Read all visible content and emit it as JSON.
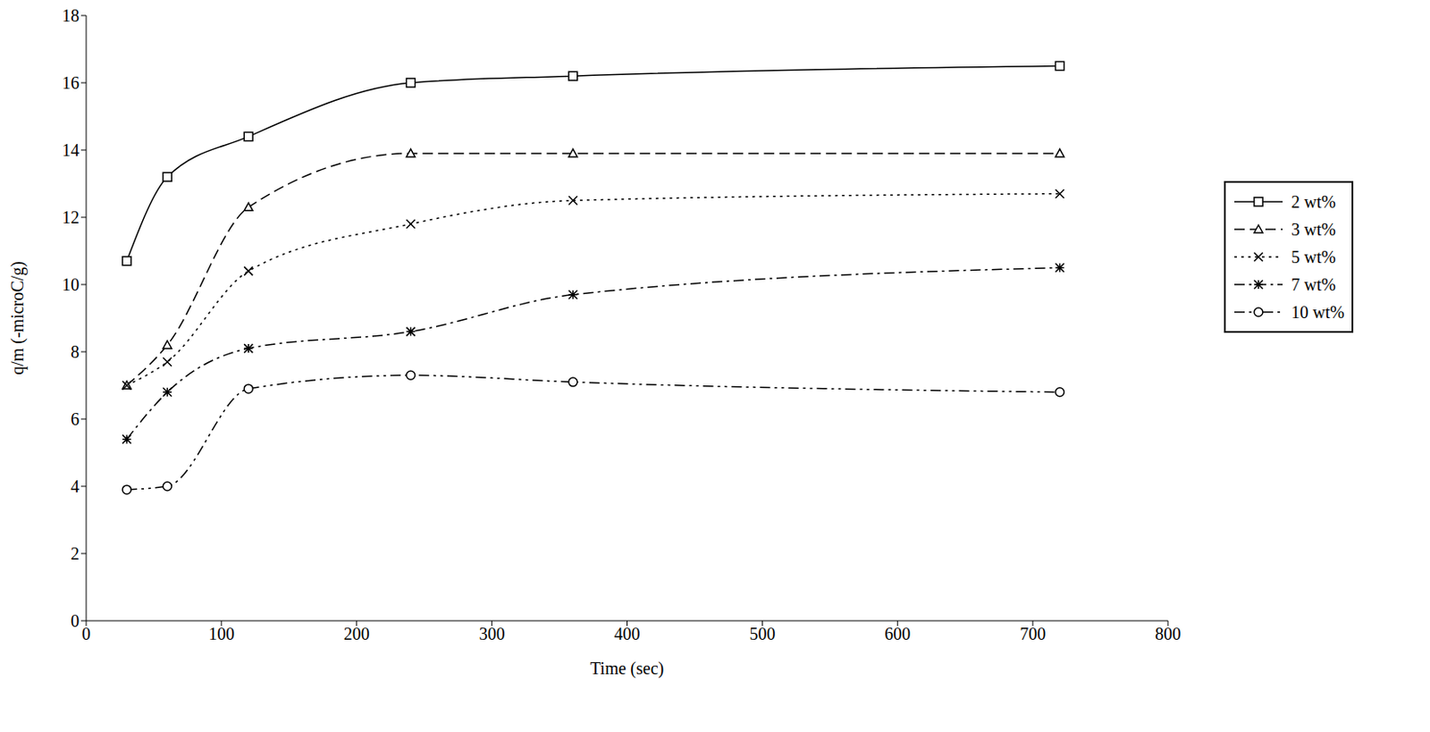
{
  "chart_data": {
    "type": "line",
    "x_label": "Time (sec)",
    "y_label": "q/m (-microC/g)",
    "x": [
      30,
      60,
      120,
      240,
      360,
      720
    ],
    "series": [
      {
        "name": "2 wt%",
        "color": "#000000",
        "marker": "square",
        "line_style": "solid",
        "values": [
          10.7,
          13.2,
          14.4,
          16.0,
          16.2,
          16.5
        ]
      },
      {
        "name": "3 wt%",
        "color": "#000000",
        "marker": "triangle",
        "line_style": "dashed",
        "values": [
          7.0,
          8.2,
          12.3,
          13.9,
          13.9,
          13.9
        ]
      },
      {
        "name": "5 wt%",
        "color": "#000000",
        "marker": "cross",
        "line_style": "dotted",
        "values": [
          7.0,
          7.7,
          10.4,
          11.8,
          12.5,
          12.7
        ]
      },
      {
        "name": "7 wt%",
        "color": "#000000",
        "marker": "star",
        "line_style": "dashdot",
        "values": [
          5.4,
          6.8,
          8.1,
          8.6,
          9.7,
          10.5
        ]
      },
      {
        "name": "10 wt%",
        "color": "#000000",
        "marker": "circle",
        "line_style": "dashdotdot",
        "values": [
          3.9,
          4.0,
          6.9,
          7.3,
          7.1,
          6.8
        ]
      }
    ],
    "xlim": [
      0,
      800
    ],
    "xticks": [
      0,
      100,
      200,
      300,
      400,
      500,
      600,
      700,
      800
    ],
    "ylim": [
      0,
      18
    ],
    "yticks": [
      0,
      2,
      4,
      6,
      8,
      10,
      12,
      14,
      16,
      18
    ],
    "grid": false,
    "legend": "right"
  }
}
